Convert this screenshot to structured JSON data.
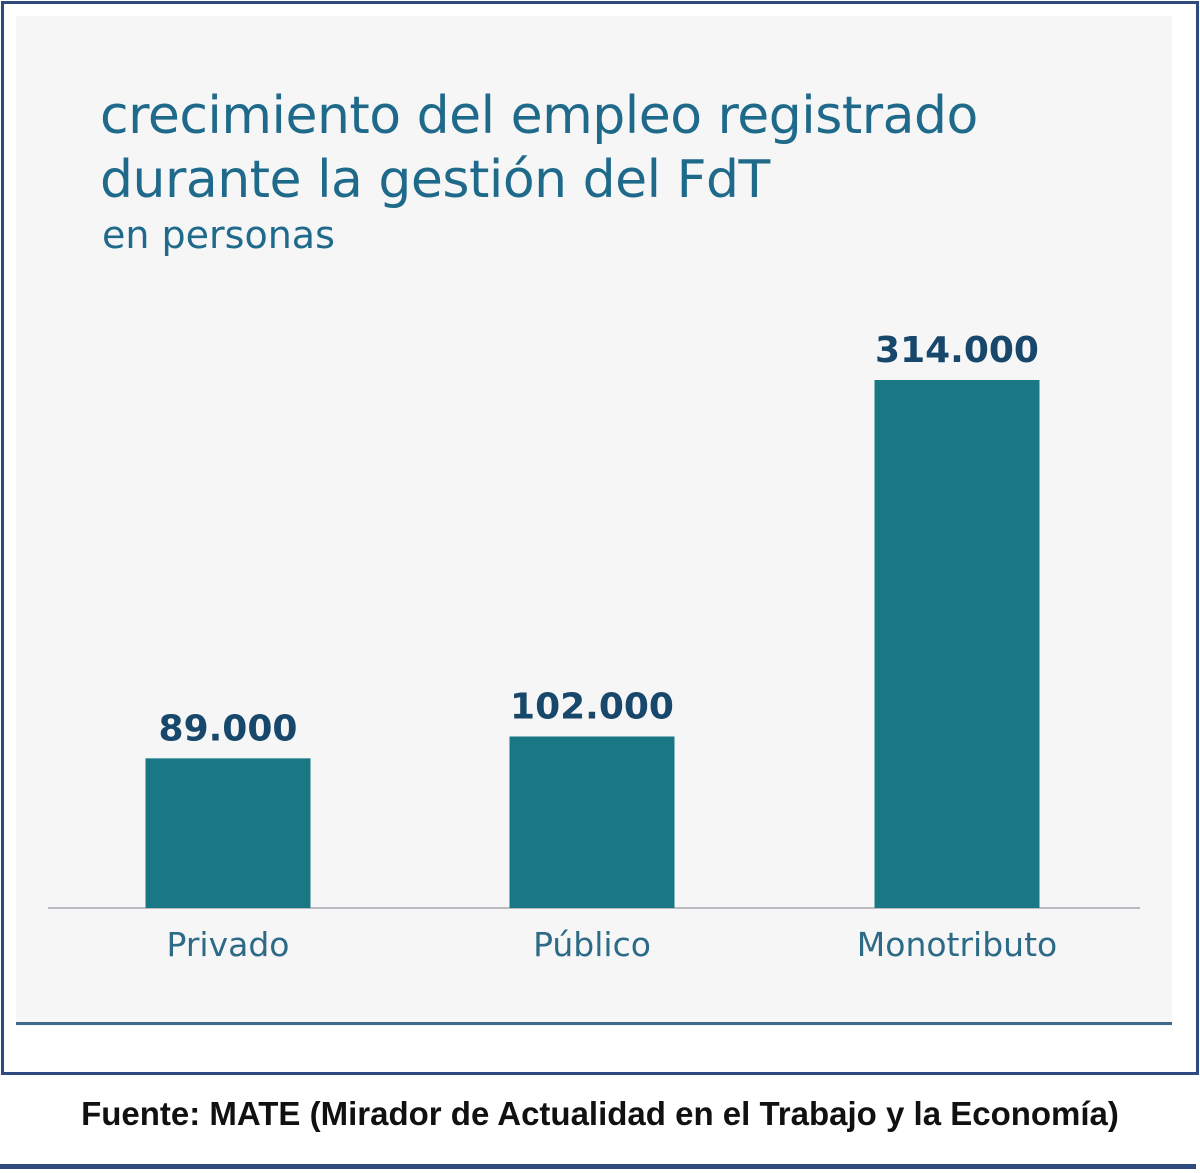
{
  "chart_data": {
    "type": "bar",
    "title_line1": "crecimiento del empleo registrado",
    "title_line2": "durante la gestión del FdT",
    "subtitle": "en personas",
    "categories": [
      "Privado",
      "Público",
      "Monotributo"
    ],
    "values": [
      89000,
      102000,
      314000
    ],
    "value_labels": [
      "89.000",
      "102.000",
      "314.000"
    ],
    "xlabel": "",
    "ylabel": "",
    "ylim": [
      0,
      314000
    ],
    "grid": false,
    "bar_color": "#197884"
  },
  "source": "Fuente: MATE (Mirador de Actualidad en el Trabajo y la Economía)"
}
